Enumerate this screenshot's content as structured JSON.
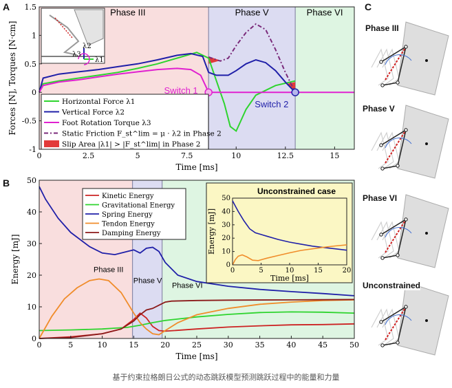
{
  "panel_labels": {
    "a": "A",
    "b": "B",
    "c": "C"
  },
  "caption": "基于约束拉格朗日公式的动态跳跃模型预测跳跃过程中的能量和力量",
  "panel_c": {
    "labels": [
      "Phase III",
      "Phase V",
      "Phase VI",
      "Unconstrained"
    ]
  },
  "colors": {
    "green": "#2ed42e",
    "blue": "#1f1fa8",
    "magenta": "#e020d0",
    "purple": "#7a2a7a",
    "red": "#cc2222",
    "orange": "#f08c2a",
    "darkred": "#8b1a1a",
    "phase3": "#f9dede",
    "phase5": "#dcdcf2",
    "phase6": "#def5e2",
    "inset": "#fbf7c4"
  },
  "chart_data": [
    {
      "type": "line",
      "panel": "A",
      "xlabel": "Time [ms]",
      "ylabel": "Forces [N], Torques [N·cm]",
      "xlim": [
        0,
        16
      ],
      "ylim": [
        -1,
        1.5
      ],
      "xticks": [
        "0",
        "2.5",
        "5",
        "7.5",
        "10",
        "12.5",
        "15"
      ],
      "yticks": [
        "-1",
        "-0.5",
        "0",
        "0.5",
        "1",
        "1.5"
      ],
      "phases": [
        {
          "label": "Phase III",
          "from": 0,
          "to": 8.6
        },
        {
          "label": "Phase V",
          "from": 8.6,
          "to": 13.0
        },
        {
          "label": "Phase VI",
          "from": 13.0,
          "to": 16
        }
      ],
      "annotations": [
        "Switch 1",
        "Switch 2"
      ],
      "inset_labels": [
        "λ2",
        "λ3",
        "λ1"
      ],
      "legend": [
        "Horizontal Force λ1",
        "Vertical Force λ2",
        "Foot Rotation Torque λ3",
        "Static Friction F_st^lim = μ · λ2 in Phase 2",
        "Slip Area |λ1| > |F_st^lim| in Phase 2"
      ],
      "series": [
        {
          "name": "Horizontal Force λ1",
          "x": [
            0,
            0.2,
            1,
            2,
            3,
            4,
            5,
            6,
            7,
            8,
            8.6,
            9.0,
            9.4,
            9.7,
            10.0,
            10.5,
            11,
            12,
            13
          ],
          "y": [
            0,
            0.15,
            0.2,
            0.25,
            0.3,
            0.35,
            0.42,
            0.5,
            0.6,
            0.7,
            0.6,
            0.2,
            -0.2,
            -0.6,
            -0.68,
            -0.3,
            -0.05,
            0.12,
            0.2
          ]
        },
        {
          "name": "Vertical Force λ2",
          "x": [
            0,
            0.2,
            1,
            2,
            3,
            4,
            5,
            6,
            7,
            7.7,
            8.3,
            8.6,
            9.0,
            9.6,
            10,
            10.5,
            11,
            11.5,
            12,
            12.5,
            13
          ],
          "y": [
            0,
            0.25,
            0.32,
            0.36,
            0.4,
            0.45,
            0.5,
            0.57,
            0.65,
            0.68,
            0.63,
            0.35,
            0.3,
            0.3,
            0.38,
            0.5,
            0.57,
            0.52,
            0.38,
            0.18,
            0
          ]
        },
        {
          "name": "Foot Rotation Torque λ3",
          "x": [
            0,
            0.2,
            1,
            2,
            3,
            4,
            5,
            6,
            7,
            7.7,
            8.2,
            8.6,
            9,
            16
          ],
          "y": [
            0,
            0.12,
            0.18,
            0.22,
            0.27,
            0.32,
            0.36,
            0.4,
            0.42,
            0.4,
            0.3,
            0,
            0,
            0
          ]
        },
        {
          "name": "Static Friction F_st^lim = μ · λ2 in Phase 2",
          "x": [
            8.6,
            9.2,
            9.6,
            10.0,
            10.5,
            11.0,
            11.5,
            12.0,
            12.5,
            13.0
          ],
          "y": [
            0.62,
            0.55,
            0.6,
            0.82,
            1.05,
            1.2,
            1.1,
            0.75,
            0.35,
            0
          ]
        }
      ]
    },
    {
      "type": "line",
      "panel": "B",
      "xlabel": "Time [ms]",
      "ylabel": "Energy [mJ]",
      "xlim": [
        0,
        50
      ],
      "ylim": [
        0,
        50
      ],
      "xticks": [
        "0",
        "5",
        "10",
        "15",
        "20",
        "25",
        "30",
        "35",
        "40",
        "45",
        "50"
      ],
      "yticks": [
        "0",
        "10",
        "20",
        "30",
        "40",
        "50"
      ],
      "phases": [
        {
          "label": "Phase III",
          "from": 0,
          "to": 14.8
        },
        {
          "label": "Phase V",
          "from": 14.8,
          "to": 19.5
        },
        {
          "label": "Phase VI",
          "from": 19.5,
          "to": 50
        }
      ],
      "legend": [
        "Kinetic Energy",
        "Gravitational Energy",
        "Spring Energy",
        "Tendon Energy",
        "Damping Energy"
      ],
      "series": [
        {
          "name": "Kinetic Energy",
          "x": [
            0,
            5,
            10,
            13,
            15,
            16,
            17,
            18,
            19,
            20,
            25,
            30,
            35,
            40,
            45,
            50
          ],
          "y": [
            0,
            0.5,
            1.5,
            3,
            6,
            8,
            6.5,
            3.8,
            2.5,
            2.3,
            3,
            3.6,
            4,
            4.3,
            4.4,
            4.6
          ]
        },
        {
          "name": "Gravitational Energy",
          "x": [
            0,
            5,
            10,
            14,
            16,
            18,
            20,
            25,
            30,
            35,
            40,
            45,
            50
          ],
          "y": [
            2.5,
            2.7,
            3,
            3.5,
            4.2,
            5,
            5.7,
            6.8,
            7.6,
            8.2,
            8.4,
            8.3,
            8.0
          ]
        },
        {
          "name": "Spring Energy",
          "x": [
            0,
            1,
            3,
            5,
            8,
            10,
            12,
            14,
            15,
            16,
            17,
            18,
            19,
            20,
            22,
            25,
            30,
            35,
            40,
            45,
            50
          ],
          "y": [
            48,
            44,
            38,
            33.5,
            29,
            27,
            26.5,
            27.5,
            28,
            27,
            28.5,
            28.8,
            27.5,
            24,
            20,
            18,
            16.5,
            15.5,
            14.8,
            14.2,
            13.5
          ]
        },
        {
          "name": "Tendon Energy",
          "x": [
            0,
            2,
            4,
            6,
            8,
            9.5,
            11,
            13,
            15,
            16,
            17,
            18,
            19,
            20,
            22,
            25,
            30,
            35,
            40,
            45,
            50
          ],
          "y": [
            0,
            7,
            12.5,
            16,
            18.3,
            18.8,
            18.3,
            14.5,
            8,
            5,
            3,
            1.5,
            1.2,
            2.5,
            5,
            7.5,
            9.5,
            10.8,
            11.5,
            12,
            12.2
          ]
        },
        {
          "name": "Damping Energy",
          "x": [
            0,
            5,
            10,
            13,
            15,
            16,
            17,
            18,
            19,
            20,
            21,
            25,
            30,
            40,
            50
          ],
          "y": [
            0,
            0.3,
            1.5,
            3,
            5.5,
            7.5,
            9,
            9.5,
            10.5,
            11.5,
            11.8,
            12,
            12.1,
            12.2,
            12.3
          ]
        }
      ],
      "inset": {
        "title": "Unconstrained case",
        "xlabel": "Time [ms]",
        "ylabel": "Energy [mJ]",
        "xlim": [
          0,
          20
        ],
        "ylim": [
          0,
          50
        ],
        "xticks": [
          "0",
          "5",
          "10",
          "15",
          "20"
        ],
        "yticks": [
          "0",
          "10",
          "20",
          "30",
          "40",
          "50"
        ],
        "series": [
          {
            "name": "Spring Energy",
            "x": [
              0,
              0.5,
              1,
              2,
              3,
              4,
              6,
              8,
              10,
              12,
              14,
              16,
              18,
              20
            ],
            "y": [
              48,
              44,
              40,
              33,
              27,
              24,
              21.5,
              19,
              17,
              15.5,
              14,
              13,
              12,
              11
            ]
          },
          {
            "name": "Tendon Energy",
            "x": [
              0,
              0.5,
              1,
              1.7,
              2.5,
              3.5,
              4.5,
              6,
              8,
              10,
              12,
              14,
              16,
              18,
              20
            ],
            "y": [
              0,
              4,
              6.5,
              7.5,
              6,
              3.5,
              3.2,
              5,
              7,
              9,
              10.8,
              12,
              13.2,
              14.2,
              15
            ]
          }
        ]
      }
    }
  ]
}
